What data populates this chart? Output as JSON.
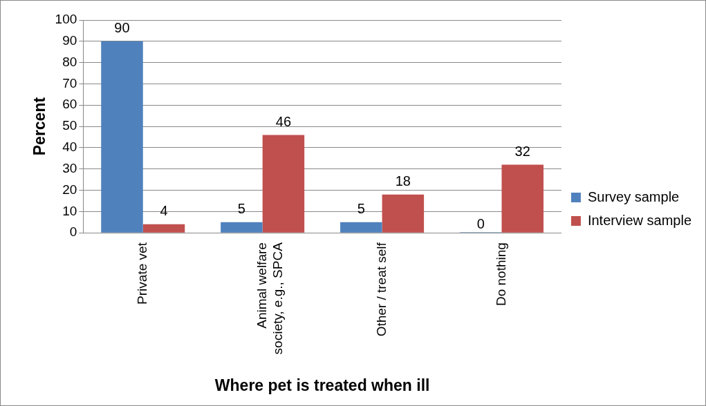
{
  "chart_data": {
    "type": "bar",
    "xlabel": "Where pet is treated when ill",
    "ylabel": "Percent",
    "categories": [
      "Private vet",
      "Animal welfare society, e.g., SPCA",
      "Other / treat self",
      "Do nothing"
    ],
    "series": [
      {
        "name": "Survey sample",
        "color": "#4f81bd",
        "values": [
          90,
          5,
          5,
          0
        ]
      },
      {
        "name": "Interview sample",
        "color": "#c0504d",
        "values": [
          4,
          46,
          18,
          32
        ]
      }
    ],
    "ylim": [
      0,
      100
    ],
    "yticks": [
      0,
      10,
      20,
      30,
      40,
      50,
      60,
      70,
      80,
      90,
      100
    ],
    "grid": "y",
    "legend": "right",
    "data_labels": true
  }
}
